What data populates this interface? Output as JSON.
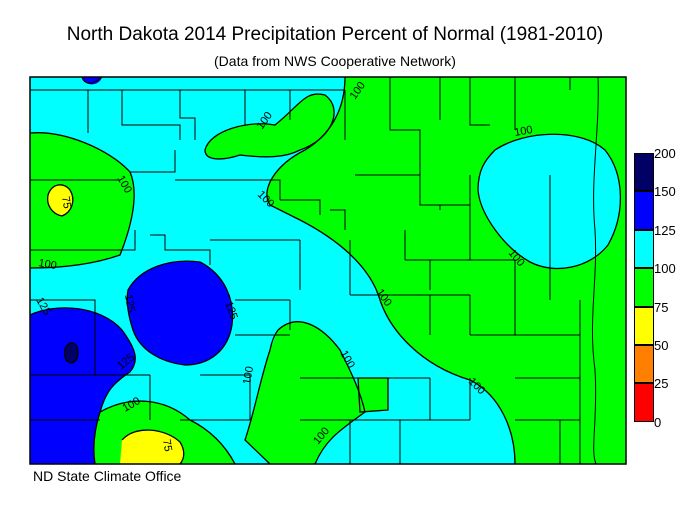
{
  "title": "North Dakota 2014 Precipitation Percent of Normal (1981-2010)",
  "subtitle": "(Data from NWS Cooperative Network)",
  "credit": "ND State Climate Office",
  "legend": {
    "ticks": [
      "200",
      "150",
      "125",
      "100",
      "75",
      "50",
      "25",
      "0"
    ],
    "bins": [
      {
        "color": "#000066"
      },
      {
        "color": "#0000ff"
      },
      {
        "color": "#00ffff"
      },
      {
        "color": "#00ff00"
      },
      {
        "color": "#ffff00"
      },
      {
        "color": "#ff8000"
      },
      {
        "color": "#ff0000"
      }
    ]
  },
  "contour_labels": [
    "100",
    "100",
    "100",
    "100",
    "100",
    "100",
    "100",
    "100",
    "100",
    "100",
    "100",
    "100",
    "125",
    "125",
    "125",
    "125",
    "75",
    "75"
  ],
  "colors": {
    "map_border": "#000000",
    "county_lines": "#000000"
  }
}
